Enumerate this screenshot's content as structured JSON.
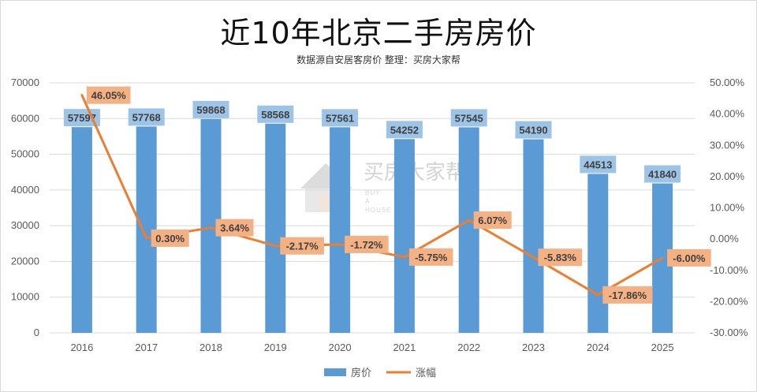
{
  "title": "近10年北京二手房房价",
  "subtitle": "数据源自安居客房价 整理：买房大家帮",
  "watermark": {
    "cn": "买房大家帮",
    "en": [
      "BUY",
      "A",
      "HOUSE"
    ]
  },
  "colors": {
    "bar": "#5b9bd5",
    "line": "#ed7d31",
    "bar_label_bg": "#9dc3e6",
    "rate_label_bg": "#f4b183",
    "grid": "#d9d9d9"
  },
  "chart_data": {
    "type": "bar+line",
    "categories": [
      "2016",
      "2017",
      "2018",
      "2019",
      "2020",
      "2021",
      "2022",
      "2023",
      "2024",
      "2025"
    ],
    "series": [
      {
        "name": "房价",
        "type": "bar",
        "axis": "left",
        "values": [
          57597,
          57768,
          59868,
          58568,
          57561,
          54252,
          57545,
          54190,
          44513,
          41840
        ]
      },
      {
        "name": "涨幅",
        "type": "line",
        "axis": "right",
        "values": [
          46.05,
          0.3,
          3.64,
          -2.17,
          -1.72,
          -5.75,
          6.07,
          -5.83,
          -17.86,
          -6.0
        ],
        "labels": [
          "46.05%",
          "0.30%",
          "3.64%",
          "-2.17%",
          "-1.72%",
          "-5.75%",
          "6.07%",
          "-5.83%",
          "-17.86%",
          "-6.00%"
        ]
      }
    ],
    "y_left": {
      "min": 0,
      "max": 70000,
      "step": 10000,
      "ticks": [
        "0",
        "10000",
        "20000",
        "30000",
        "40000",
        "50000",
        "60000",
        "70000"
      ]
    },
    "y_right": {
      "min": -30,
      "max": 50,
      "step": 10,
      "ticks": [
        "-30.00%",
        "-20.00%",
        "-10.00%",
        "0.00%",
        "10.00%",
        "20.00%",
        "30.00%",
        "40.00%",
        "50.00%"
      ]
    },
    "legend": {
      "position": "bottom",
      "items": [
        "房价",
        "涨幅"
      ]
    },
    "grid": true
  }
}
